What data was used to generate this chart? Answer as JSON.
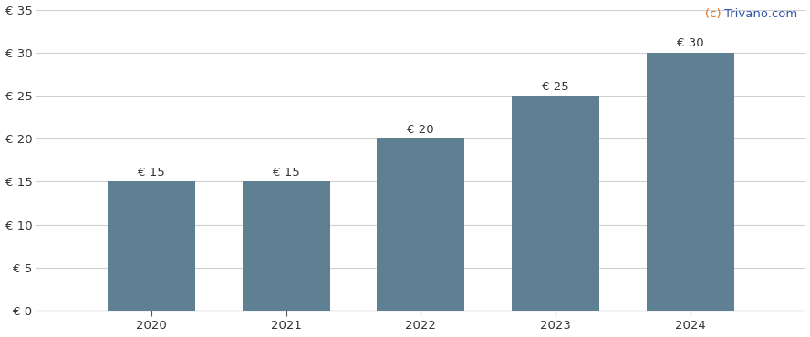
{
  "years": [
    2020,
    2021,
    2022,
    2023,
    2024
  ],
  "values": [
    15,
    15,
    20,
    25,
    30
  ],
  "bar_color": "#5f7f93",
  "bar_labels": [
    "€ 15",
    "€ 15",
    "€ 20",
    "€ 25",
    "€ 30"
  ],
  "ylim": [
    0,
    35
  ],
  "yticks": [
    0,
    5,
    10,
    15,
    20,
    25,
    30,
    35
  ],
  "ytick_labels": [
    "€ 0",
    "€ 5",
    "€ 10",
    "€ 15",
    "€ 20",
    "€ 25",
    "€ 30",
    "€ 35"
  ],
  "background_color": "#ffffff",
  "grid_color": "#d0d0d0",
  "watermark_color_c": "#e07020",
  "watermark_color_rest": "#3355aa",
  "bar_label_fontsize": 9.5,
  "tick_fontsize": 9.5,
  "watermark_fontsize": 9.5,
  "bar_width": 0.65,
  "xlim_left": 2019.15,
  "xlim_right": 2024.85
}
